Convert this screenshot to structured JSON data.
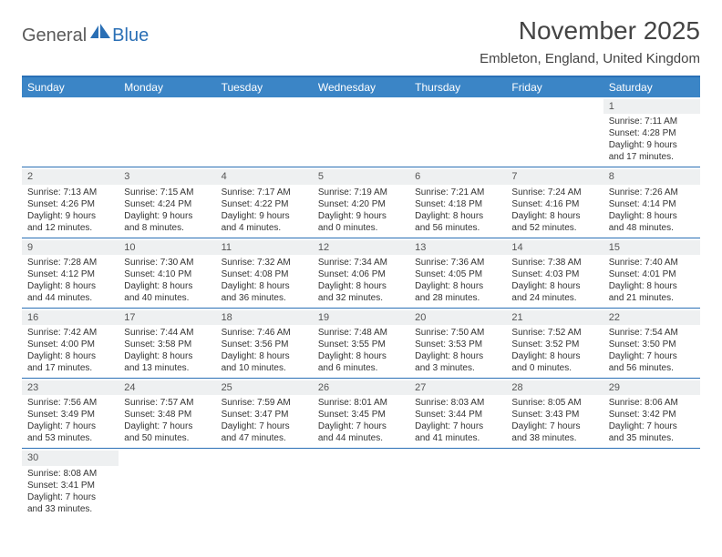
{
  "logo": {
    "text1": "General",
    "text2": "Blue"
  },
  "title": "November 2025",
  "location": "Embleton, England, United Kingdom",
  "colors": {
    "header_bg": "#3b85c6",
    "border": "#2a6fb5",
    "daynum_bg": "#eef0f1",
    "text": "#333333"
  },
  "day_names": [
    "Sunday",
    "Monday",
    "Tuesday",
    "Wednesday",
    "Thursday",
    "Friday",
    "Saturday"
  ],
  "weeks": [
    [
      null,
      null,
      null,
      null,
      null,
      null,
      {
        "n": "1",
        "sr": "Sunrise: 7:11 AM",
        "ss": "Sunset: 4:28 PM",
        "d1": "Daylight: 9 hours",
        "d2": "and 17 minutes."
      }
    ],
    [
      {
        "n": "2",
        "sr": "Sunrise: 7:13 AM",
        "ss": "Sunset: 4:26 PM",
        "d1": "Daylight: 9 hours",
        "d2": "and 12 minutes."
      },
      {
        "n": "3",
        "sr": "Sunrise: 7:15 AM",
        "ss": "Sunset: 4:24 PM",
        "d1": "Daylight: 9 hours",
        "d2": "and 8 minutes."
      },
      {
        "n": "4",
        "sr": "Sunrise: 7:17 AM",
        "ss": "Sunset: 4:22 PM",
        "d1": "Daylight: 9 hours",
        "d2": "and 4 minutes."
      },
      {
        "n": "5",
        "sr": "Sunrise: 7:19 AM",
        "ss": "Sunset: 4:20 PM",
        "d1": "Daylight: 9 hours",
        "d2": "and 0 minutes."
      },
      {
        "n": "6",
        "sr": "Sunrise: 7:21 AM",
        "ss": "Sunset: 4:18 PM",
        "d1": "Daylight: 8 hours",
        "d2": "and 56 minutes."
      },
      {
        "n": "7",
        "sr": "Sunrise: 7:24 AM",
        "ss": "Sunset: 4:16 PM",
        "d1": "Daylight: 8 hours",
        "d2": "and 52 minutes."
      },
      {
        "n": "8",
        "sr": "Sunrise: 7:26 AM",
        "ss": "Sunset: 4:14 PM",
        "d1": "Daylight: 8 hours",
        "d2": "and 48 minutes."
      }
    ],
    [
      {
        "n": "9",
        "sr": "Sunrise: 7:28 AM",
        "ss": "Sunset: 4:12 PM",
        "d1": "Daylight: 8 hours",
        "d2": "and 44 minutes."
      },
      {
        "n": "10",
        "sr": "Sunrise: 7:30 AM",
        "ss": "Sunset: 4:10 PM",
        "d1": "Daylight: 8 hours",
        "d2": "and 40 minutes."
      },
      {
        "n": "11",
        "sr": "Sunrise: 7:32 AM",
        "ss": "Sunset: 4:08 PM",
        "d1": "Daylight: 8 hours",
        "d2": "and 36 minutes."
      },
      {
        "n": "12",
        "sr": "Sunrise: 7:34 AM",
        "ss": "Sunset: 4:06 PM",
        "d1": "Daylight: 8 hours",
        "d2": "and 32 minutes."
      },
      {
        "n": "13",
        "sr": "Sunrise: 7:36 AM",
        "ss": "Sunset: 4:05 PM",
        "d1": "Daylight: 8 hours",
        "d2": "and 28 minutes."
      },
      {
        "n": "14",
        "sr": "Sunrise: 7:38 AM",
        "ss": "Sunset: 4:03 PM",
        "d1": "Daylight: 8 hours",
        "d2": "and 24 minutes."
      },
      {
        "n": "15",
        "sr": "Sunrise: 7:40 AM",
        "ss": "Sunset: 4:01 PM",
        "d1": "Daylight: 8 hours",
        "d2": "and 21 minutes."
      }
    ],
    [
      {
        "n": "16",
        "sr": "Sunrise: 7:42 AM",
        "ss": "Sunset: 4:00 PM",
        "d1": "Daylight: 8 hours",
        "d2": "and 17 minutes."
      },
      {
        "n": "17",
        "sr": "Sunrise: 7:44 AM",
        "ss": "Sunset: 3:58 PM",
        "d1": "Daylight: 8 hours",
        "d2": "and 13 minutes."
      },
      {
        "n": "18",
        "sr": "Sunrise: 7:46 AM",
        "ss": "Sunset: 3:56 PM",
        "d1": "Daylight: 8 hours",
        "d2": "and 10 minutes."
      },
      {
        "n": "19",
        "sr": "Sunrise: 7:48 AM",
        "ss": "Sunset: 3:55 PM",
        "d1": "Daylight: 8 hours",
        "d2": "and 6 minutes."
      },
      {
        "n": "20",
        "sr": "Sunrise: 7:50 AM",
        "ss": "Sunset: 3:53 PM",
        "d1": "Daylight: 8 hours",
        "d2": "and 3 minutes."
      },
      {
        "n": "21",
        "sr": "Sunrise: 7:52 AM",
        "ss": "Sunset: 3:52 PM",
        "d1": "Daylight: 8 hours",
        "d2": "and 0 minutes."
      },
      {
        "n": "22",
        "sr": "Sunrise: 7:54 AM",
        "ss": "Sunset: 3:50 PM",
        "d1": "Daylight: 7 hours",
        "d2": "and 56 minutes."
      }
    ],
    [
      {
        "n": "23",
        "sr": "Sunrise: 7:56 AM",
        "ss": "Sunset: 3:49 PM",
        "d1": "Daylight: 7 hours",
        "d2": "and 53 minutes."
      },
      {
        "n": "24",
        "sr": "Sunrise: 7:57 AM",
        "ss": "Sunset: 3:48 PM",
        "d1": "Daylight: 7 hours",
        "d2": "and 50 minutes."
      },
      {
        "n": "25",
        "sr": "Sunrise: 7:59 AM",
        "ss": "Sunset: 3:47 PM",
        "d1": "Daylight: 7 hours",
        "d2": "and 47 minutes."
      },
      {
        "n": "26",
        "sr": "Sunrise: 8:01 AM",
        "ss": "Sunset: 3:45 PM",
        "d1": "Daylight: 7 hours",
        "d2": "and 44 minutes."
      },
      {
        "n": "27",
        "sr": "Sunrise: 8:03 AM",
        "ss": "Sunset: 3:44 PM",
        "d1": "Daylight: 7 hours",
        "d2": "and 41 minutes."
      },
      {
        "n": "28",
        "sr": "Sunrise: 8:05 AM",
        "ss": "Sunset: 3:43 PM",
        "d1": "Daylight: 7 hours",
        "d2": "and 38 minutes."
      },
      {
        "n": "29",
        "sr": "Sunrise: 8:06 AM",
        "ss": "Sunset: 3:42 PM",
        "d1": "Daylight: 7 hours",
        "d2": "and 35 minutes."
      }
    ],
    [
      {
        "n": "30",
        "sr": "Sunrise: 8:08 AM",
        "ss": "Sunset: 3:41 PM",
        "d1": "Daylight: 7 hours",
        "d2": "and 33 minutes."
      },
      null,
      null,
      null,
      null,
      null,
      null
    ]
  ]
}
